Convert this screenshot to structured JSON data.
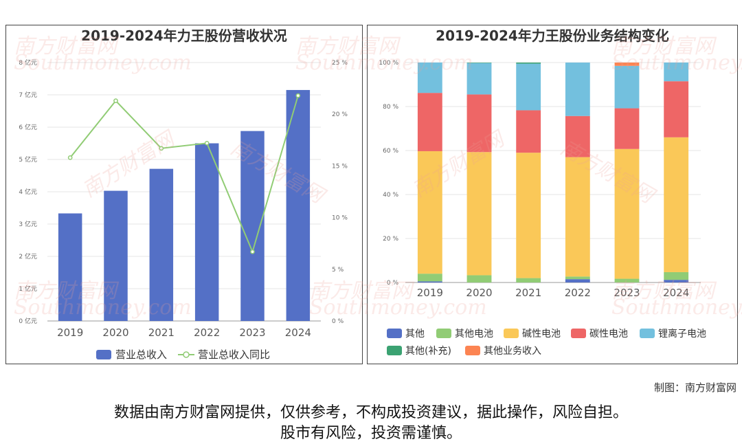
{
  "credit": "制图：南方财富网",
  "disclaimer": {
    "line1": "数据由南方财富网提供，仅供参考，不构成投资建议，据此操作，风险自担。",
    "line2": "股市有风险，投资需谨慎。"
  },
  "watermark": {
    "cn": "南方财富网",
    "en": "Southmoney.com"
  },
  "chart_data": [
    {
      "type": "bar",
      "title": "2019-2024年力王股份营收状况",
      "categories": [
        "2019",
        "2020",
        "2021",
        "2022",
        "2023",
        "2024"
      ],
      "series": [
        {
          "name": "营业总收入",
          "type": "bar",
          "axis": "left",
          "color": "#5470c6",
          "values": [
            3.33,
            4.03,
            4.71,
            5.5,
            5.88,
            7.15
          ]
        },
        {
          "name": "营业总收入同比",
          "type": "line",
          "axis": "right",
          "color": "#91cc75",
          "values": [
            15.8,
            21.3,
            16.7,
            17.2,
            6.7,
            21.8
          ]
        }
      ],
      "y_left": {
        "min": 0,
        "max": 8,
        "ticks": [
          "0 亿元",
          "1 亿元",
          "2 亿元",
          "3 亿元",
          "4 亿元",
          "5 亿元",
          "6 亿元",
          "7 亿元",
          "8 亿元"
        ]
      },
      "y_right": {
        "min": 0,
        "max": 25,
        "ticks": [
          "0 %",
          "5 %",
          "10 %",
          "15 %",
          "20 %",
          "25 %"
        ]
      },
      "grid": true,
      "legend": "bottom"
    },
    {
      "type": "bar",
      "stacked": true,
      "title": "2019-2024年力王股份业务结构变化",
      "categories": [
        "2019",
        "2020",
        "2021",
        "2022",
        "2023",
        "2024"
      ],
      "series": [
        {
          "name": "其他",
          "color": "#5470c6",
          "values": [
            0.5,
            0,
            0,
            1.5,
            0,
            1.2
          ]
        },
        {
          "name": "其他电池",
          "color": "#91cc75",
          "values": [
            3.5,
            3.3,
            2.0,
            1.2,
            1.7,
            3.5
          ]
        },
        {
          "name": "碱性电池",
          "color": "#fac858",
          "values": [
            55.7,
            56.0,
            57.0,
            54.3,
            59.0,
            61.3
          ]
        },
        {
          "name": "碳性电池",
          "color": "#ee6666",
          "values": [
            26.5,
            26.2,
            19.3,
            18.7,
            18.5,
            25.5
          ]
        },
        {
          "name": "锂离子电池",
          "color": "#73c0de",
          "values": [
            13.8,
            14.3,
            21.2,
            24.3,
            19.3,
            8.5
          ]
        },
        {
          "name": "其他(补充)",
          "color": "#3ba272",
          "values": [
            0,
            0.2,
            0.5,
            0,
            0,
            0
          ]
        },
        {
          "name": "其他业务收入",
          "color": "#fc8452",
          "values": [
            0,
            0,
            0,
            0,
            1.5,
            0
          ]
        }
      ],
      "y": {
        "min": 0,
        "max": 100,
        "ticks": [
          "0 %",
          "20 %",
          "40 %",
          "60 %",
          "80 %",
          "100 %"
        ]
      },
      "grid": true,
      "legend": "bottom"
    }
  ]
}
